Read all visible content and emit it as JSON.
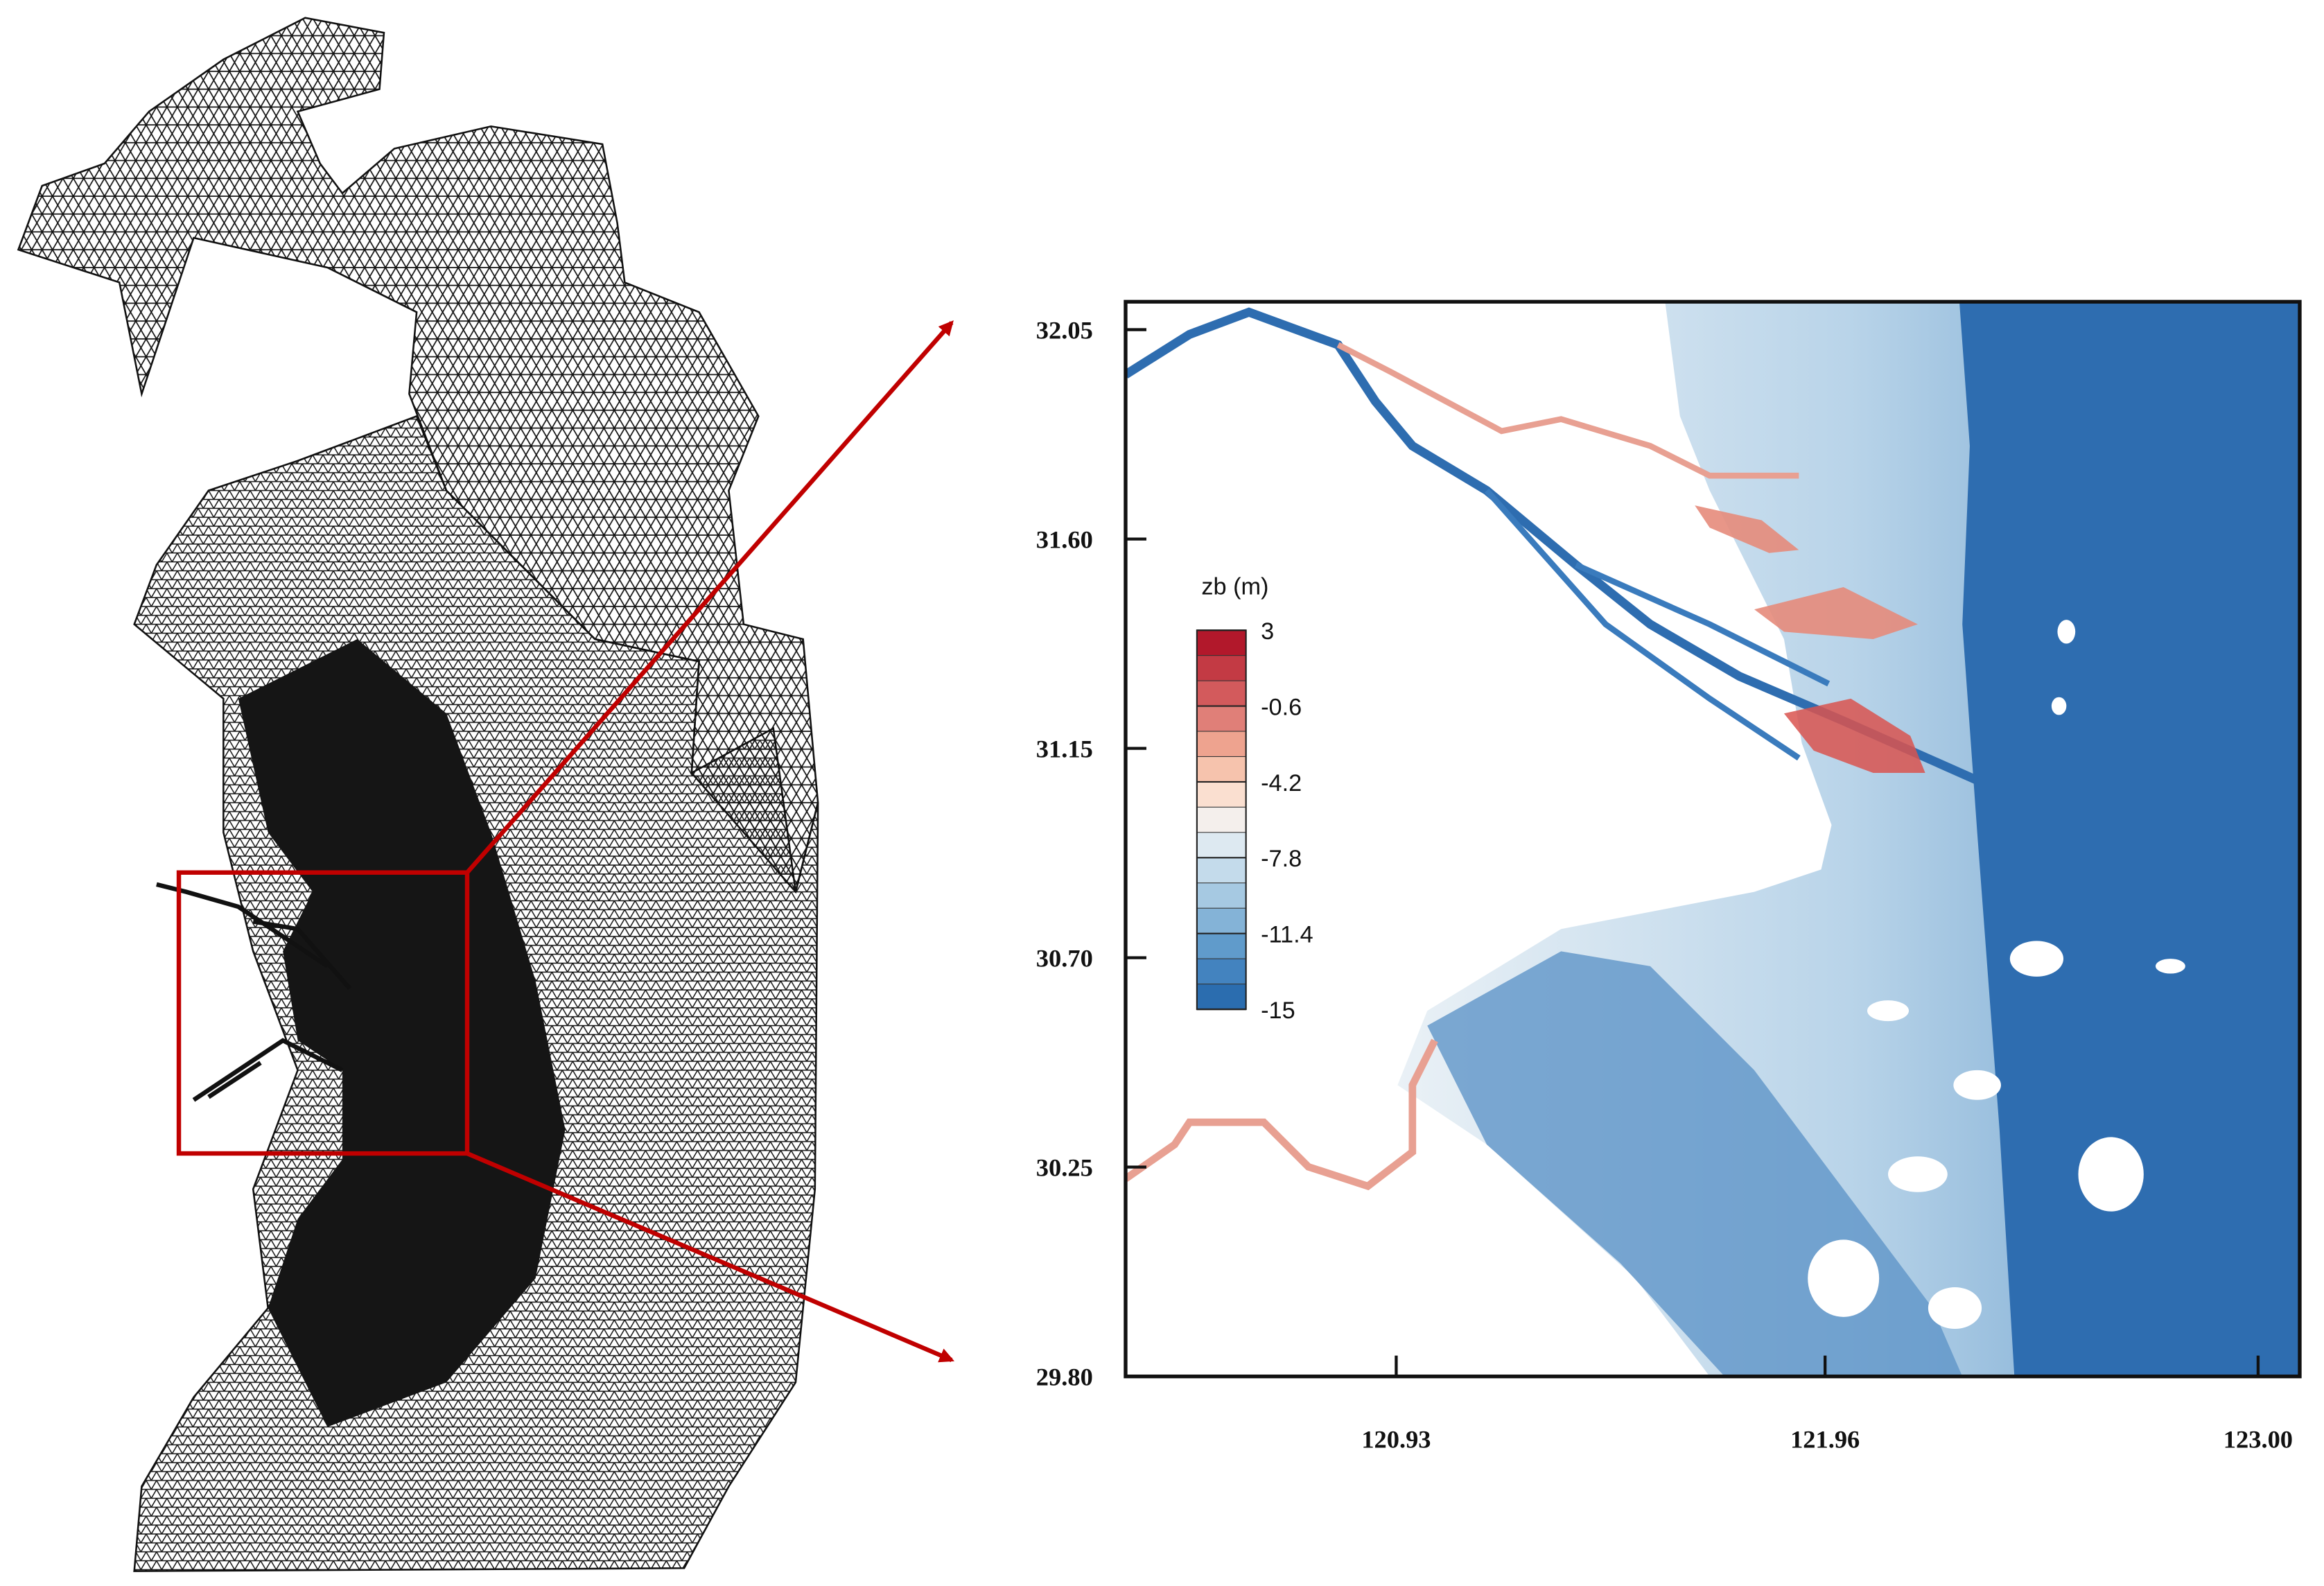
{
  "map": {
    "xlim": [
      120.28,
      123.1
    ],
    "ylim": [
      29.8,
      32.11
    ],
    "xticks": [
      120.93,
      121.96,
      {
        "value": 123,
        "label": "123.00"
      }
    ],
    "yticks": [
      32.05,
      {
        "value": 31.6,
        "label": "31.60"
      },
      31.15,
      {
        "value": 30.7,
        "label": "30.70"
      },
      30.25,
      {
        "value": 29.8,
        "label": "29.80"
      }
    ],
    "legend": {
      "title": "zb (m)",
      "range": [
        -15,
        3
      ],
      "ticks": [
        3,
        -0.6,
        -4.2,
        -7.8,
        -11.4,
        -15
      ],
      "colors": [
        "#b2182b",
        "#c33a44",
        "#d35a5c",
        "#e07f78",
        "#eea38f",
        "#f6c3ad",
        "#fadfd0",
        "#f4efec",
        "#dde9f1",
        "#c4dbeb",
        "#a6c9e2",
        "#84b3d7",
        "#609bcb",
        "#4383bf",
        "#2b6daf"
      ]
    }
  }
}
